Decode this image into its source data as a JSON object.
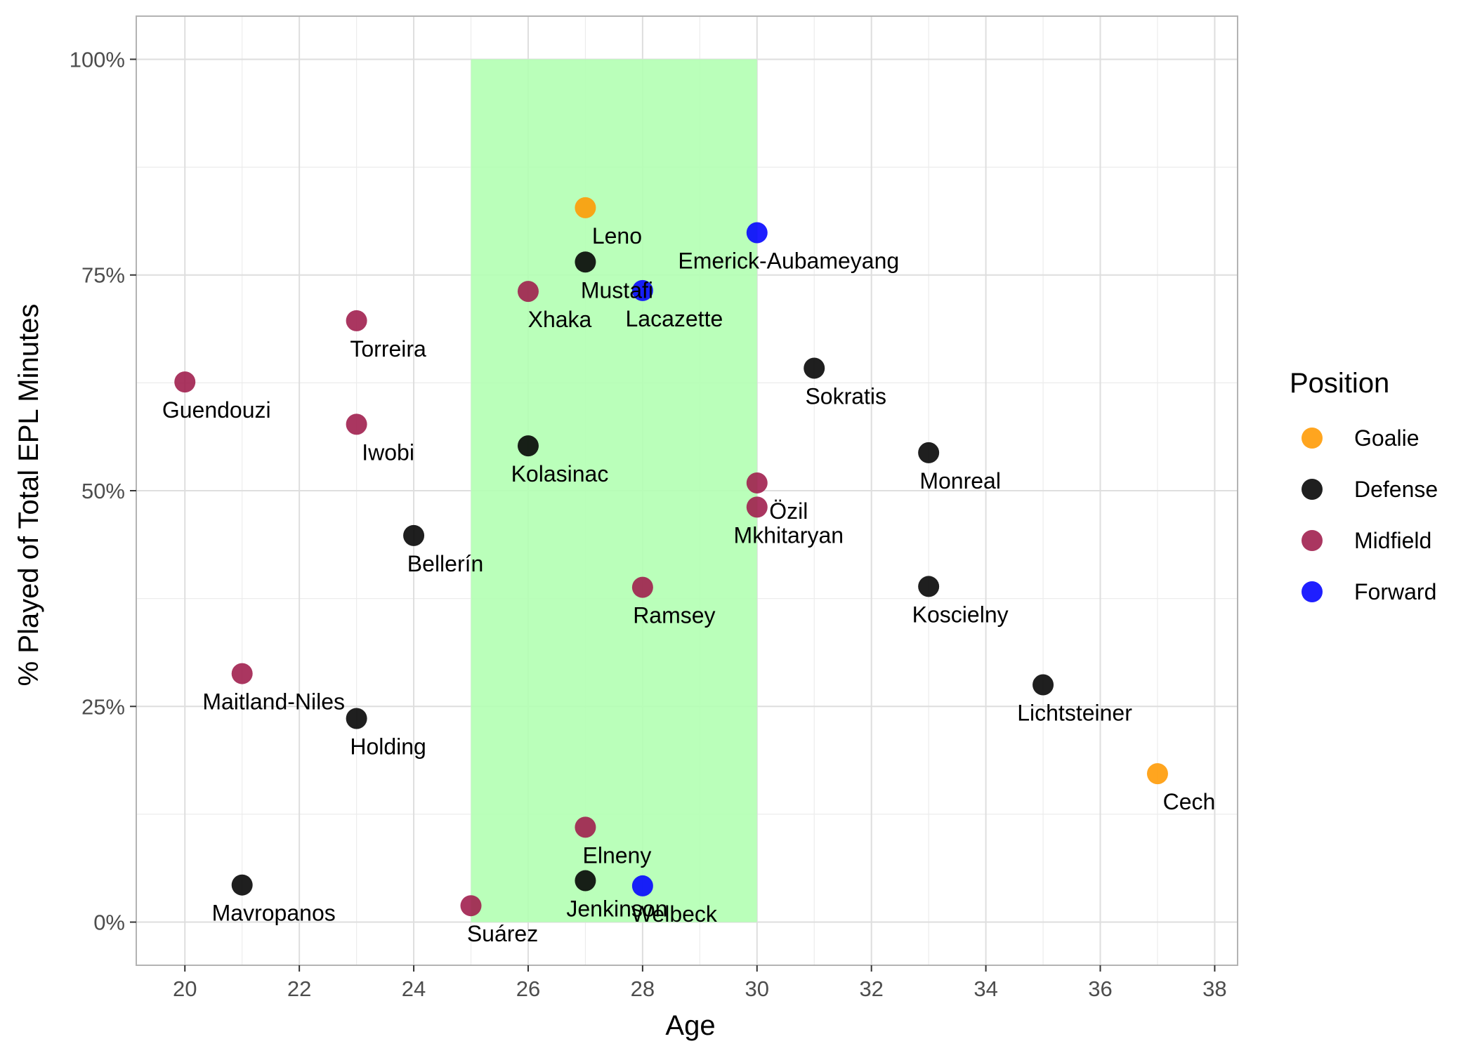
{
  "chart_data": {
    "type": "scatter",
    "title": "",
    "xlabel": "Age",
    "ylabel": "% Played of Total EPL Minutes",
    "xlim": [
      19.15,
      38.4
    ],
    "ylim": [
      -0.05,
      1.05
    ],
    "x_ticks": [
      20,
      22,
      24,
      26,
      28,
      30,
      32,
      34,
      36,
      38
    ],
    "x_tick_labels": [
      "20",
      "22",
      "24",
      "26",
      "28",
      "30",
      "32",
      "34",
      "36",
      "38"
    ],
    "y_ticks": [
      0,
      0.25,
      0.5,
      0.75,
      1.0
    ],
    "y_tick_labels": [
      "0%",
      "25%",
      "50%",
      "75%",
      "100%"
    ],
    "grid": true,
    "highlight_band": {
      "x": [
        25,
        30
      ],
      "y": [
        0,
        1.0
      ],
      "color": "#b3ffb3"
    },
    "legend": {
      "title": "Position",
      "position": "right",
      "entries": [
        {
          "label": "Goalie",
          "color": "#ff9900"
        },
        {
          "label": "Defense",
          "color": "#000000"
        },
        {
          "label": "Midfield",
          "color": "#9e1a4a"
        },
        {
          "label": "Forward",
          "color": "#0000ff"
        }
      ]
    },
    "points": [
      {
        "name": "Leno",
        "x": 27,
        "y": 0.828,
        "position": "Goalie"
      },
      {
        "name": "Cech",
        "x": 37,
        "y": 0.172,
        "position": "Goalie"
      },
      {
        "name": "Mustafi",
        "x": 27,
        "y": 0.765,
        "position": "Defense"
      },
      {
        "name": "Sokratis",
        "x": 31,
        "y": 0.642,
        "position": "Defense"
      },
      {
        "name": "Kolasinac",
        "x": 26,
        "y": 0.552,
        "position": "Defense"
      },
      {
        "name": "Monreal",
        "x": 33,
        "y": 0.544,
        "position": "Defense"
      },
      {
        "name": "Bellerín",
        "x": 24,
        "y": 0.448,
        "position": "Defense"
      },
      {
        "name": "Koscielny",
        "x": 33,
        "y": 0.389,
        "position": "Defense"
      },
      {
        "name": "Lichtsteiner",
        "x": 35,
        "y": 0.275,
        "position": "Defense"
      },
      {
        "name": "Holding",
        "x": 23,
        "y": 0.236,
        "position": "Defense"
      },
      {
        "name": "Mavropanos",
        "x": 21,
        "y": 0.043,
        "position": "Defense"
      },
      {
        "name": "Jenkinson",
        "x": 27,
        "y": 0.048,
        "position": "Defense"
      },
      {
        "name": "Xhaka",
        "x": 26,
        "y": 0.731,
        "position": "Midfield"
      },
      {
        "name": "Torreira",
        "x": 23,
        "y": 0.697,
        "position": "Midfield"
      },
      {
        "name": "Guendouzi",
        "x": 20,
        "y": 0.626,
        "position": "Midfield"
      },
      {
        "name": "Iwobi",
        "x": 23,
        "y": 0.577,
        "position": "Midfield"
      },
      {
        "name": "Özil",
        "x": 30,
        "y": 0.509,
        "position": "Midfield"
      },
      {
        "name": "Mkhitaryan",
        "x": 30,
        "y": 0.481,
        "position": "Midfield"
      },
      {
        "name": "Ramsey",
        "x": 28,
        "y": 0.388,
        "position": "Midfield"
      },
      {
        "name": "Maitland-Niles",
        "x": 21,
        "y": 0.288,
        "position": "Midfield"
      },
      {
        "name": "Elneny",
        "x": 27,
        "y": 0.11,
        "position": "Midfield"
      },
      {
        "name": "Suárez",
        "x": 25,
        "y": 0.019,
        "position": "Midfield"
      },
      {
        "name": "Emerick-Aubameyang",
        "x": 30,
        "y": 0.799,
        "position": "Forward"
      },
      {
        "name": "Lacazette",
        "x": 28,
        "y": 0.732,
        "position": "Forward"
      },
      {
        "name": "Welbeck",
        "x": 28,
        "y": 0.042,
        "position": "Forward"
      }
    ]
  }
}
